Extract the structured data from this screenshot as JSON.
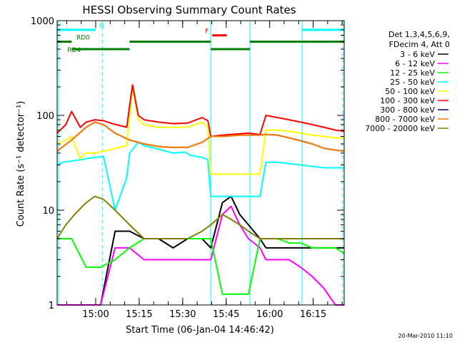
{
  "chart_data": {
    "type": "line",
    "title": "HESSI Observing Summary Count Rates",
    "xlabel": "Start Time (06-Jan-04 14:46:42)",
    "ylabel": "Count Rate (s⁻¹ detector⁻¹)",
    "x_units": "minutes since start time",
    "xlim": [
      0,
      99
    ],
    "ylim": [
      1,
      1000
    ],
    "yscale": "log",
    "grid": false,
    "legend_position": "right",
    "x_ticks": [
      {
        "label": "15:00",
        "value": 13.3
      },
      {
        "label": "15:15",
        "value": 28.3
      },
      {
        "label": "15:30",
        "value": 43.3
      },
      {
        "label": "15:45",
        "value": 58.3
      },
      {
        "label": "16:00",
        "value": 73.3
      },
      {
        "label": "16:15",
        "value": 88.3
      }
    ],
    "y_ticks": [
      {
        "label": "1",
        "value": 1
      },
      {
        "label": "10",
        "value": 10
      },
      {
        "label": "100",
        "value": 100
      },
      {
        "label": "1000",
        "value": 1000
      }
    ],
    "legend": {
      "header": [
        "Det 1,3,4,5,6,9,",
        "FDecim 4, Att 0"
      ]
    },
    "series": [
      {
        "name": "3 - 6 keV",
        "color": "#000000",
        "x": [
          0,
          5,
          10,
          15,
          20,
          25,
          30,
          35,
          40,
          45,
          50,
          53,
          57,
          60,
          63,
          66,
          70,
          72,
          76,
          80,
          84,
          88,
          92,
          96,
          99
        ],
        "y": [
          1,
          1,
          1,
          1,
          6,
          6,
          5,
          5,
          4,
          5,
          5,
          4,
          12,
          14,
          9,
          7,
          5,
          4,
          4,
          4,
          4,
          4,
          4,
          4,
          4
        ]
      },
      {
        "name": "6 - 12 keV",
        "color": "#ff00ff",
        "x": [
          0,
          5,
          10,
          15,
          20,
          25,
          30,
          35,
          40,
          45,
          50,
          53,
          57,
          60,
          63,
          66,
          70,
          72,
          76,
          80,
          84,
          88,
          92,
          96,
          99
        ],
        "y": [
          1,
          1,
          1,
          1,
          4,
          4,
          3,
          3,
          3,
          3,
          3,
          3,
          9,
          11,
          7,
          5,
          4,
          3,
          3,
          3,
          2.5,
          2,
          1.5,
          1,
          1
        ]
      },
      {
        "name": "12 - 25 keV",
        "color": "#00ff00",
        "x": [
          0,
          5,
          10,
          15,
          20,
          25,
          30,
          35,
          40,
          45,
          50,
          53,
          57,
          60,
          63,
          66,
          70,
          72,
          76,
          80,
          84,
          88,
          92,
          96,
          99
        ],
        "y": [
          5,
          5,
          2.5,
          2.5,
          3,
          4,
          5,
          5,
          5,
          5,
          5,
          5,
          1.3,
          1.3,
          1.3,
          1.3,
          5,
          5,
          5,
          4.5,
          4.5,
          4,
          4,
          4,
          3.5
        ]
      },
      {
        "name": "25 - 50 keV",
        "color": "#00ffff",
        "x": [
          0,
          2,
          5,
          8,
          10,
          13,
          16,
          20,
          24,
          25,
          28,
          30,
          35,
          40,
          44,
          46,
          50,
          52,
          53,
          57,
          60,
          63,
          66,
          70,
          72,
          76,
          80,
          84,
          88,
          92,
          96,
          99
        ],
        "y": [
          30,
          32,
          33,
          34,
          35,
          36,
          37,
          10,
          22,
          40,
          52,
          48,
          44,
          40,
          41,
          38,
          36,
          34,
          14,
          14,
          14,
          14,
          14,
          14,
          32,
          32,
          31,
          30,
          29,
          28,
          28,
          28
        ]
      },
      {
        "name": "50 - 100 keV",
        "color": "#ffff00",
        "x": [
          0,
          3,
          5,
          8,
          10,
          13,
          16,
          19,
          24,
          26,
          28,
          30,
          35,
          40,
          45,
          50,
          52,
          53,
          57,
          60,
          63,
          66,
          70,
          72,
          76,
          80,
          84,
          88,
          92,
          96,
          99
        ],
        "y": [
          50,
          55,
          60,
          35,
          40,
          40,
          42,
          44,
          48,
          200,
          90,
          80,
          75,
          75,
          75,
          85,
          75,
          24,
          24,
          24,
          24,
          24,
          24,
          70,
          70,
          68,
          65,
          62,
          60,
          58,
          58
        ]
      },
      {
        "name": "100 - 300 keV",
        "color": "#ff0000",
        "x": [
          0,
          3,
          5,
          8,
          10,
          13,
          16,
          19,
          24,
          26,
          28,
          30,
          35,
          40,
          45,
          50,
          52,
          53,
          57,
          60,
          63,
          66,
          70,
          72,
          76,
          80,
          84,
          88,
          92,
          96,
          99
        ],
        "y": [
          65,
          80,
          110,
          75,
          85,
          90,
          88,
          82,
          75,
          210,
          100,
          90,
          85,
          82,
          83,
          95,
          88,
          60,
          62,
          63,
          64,
          65,
          63,
          100,
          95,
          90,
          85,
          80,
          75,
          70,
          68
        ]
      },
      {
        "name": "300 - 800 keV",
        "color": "#000080",
        "x": [
          0,
          5,
          10,
          13,
          16,
          20,
          25,
          30,
          35,
          40,
          45,
          50,
          53,
          57,
          60,
          63,
          66,
          70,
          72,
          76,
          80,
          84,
          88,
          92,
          96,
          99
        ],
        "y": [
          42,
          55,
          75,
          85,
          80,
          65,
          55,
          50,
          47,
          46,
          46,
          52,
          60,
          60,
          61,
          62,
          62,
          62,
          63,
          62,
          58,
          54,
          50,
          45,
          43,
          42
        ]
      },
      {
        "name": "800 - 7000 keV",
        "color": "#ff8000",
        "x": [
          0,
          5,
          10,
          13,
          16,
          20,
          25,
          30,
          35,
          40,
          45,
          50,
          53,
          57,
          60,
          63,
          66,
          70,
          72,
          76,
          80,
          84,
          88,
          92,
          96,
          99
        ],
        "y": [
          42,
          55,
          75,
          85,
          80,
          65,
          55,
          50,
          47,
          46,
          46,
          52,
          60,
          60,
          61,
          62,
          62,
          62,
          63,
          62,
          58,
          54,
          50,
          45,
          43,
          42
        ]
      },
      {
        "name": "7000 - 20000 keV",
        "color": "#808000",
        "x": [
          0,
          3,
          6,
          10,
          13,
          16,
          20,
          25,
          30,
          35,
          40,
          45,
          50,
          53,
          57,
          60,
          63,
          66,
          70,
          72,
          76,
          80,
          84,
          88,
          92,
          96,
          99
        ],
        "y": [
          5,
          7,
          9,
          12,
          14,
          13,
          10,
          7,
          5,
          5,
          5,
          5,
          6,
          7,
          9,
          8,
          7,
          6,
          5,
          5,
          5,
          5,
          5,
          5,
          5,
          5,
          5
        ]
      }
    ],
    "annotations": {
      "flags": [
        {
          "label": "N",
          "color": "#00ffff",
          "y": 800,
          "segments": [
            [
              0,
              13.3
            ],
            [
              84.5,
              99
            ]
          ]
        },
        {
          "label": "F",
          "color": "#ff0000",
          "y": 700,
          "segments": [
            [
              53.5,
              58.5
            ]
          ]
        },
        {
          "label": "RD0",
          "color": "#008000",
          "y": 600,
          "segments": [
            [
              0,
              5
            ],
            [
              25,
              53
            ],
            [
              66.5,
              99
            ]
          ]
        },
        {
          "label": "RD4",
          "color": "#008000",
          "y": 500,
          "segments": [
            [
              5,
              25
            ],
            [
              53,
              66.5
            ]
          ]
        }
      ],
      "vlines": [
        {
          "x": 0.5,
          "color": "#00ffff",
          "style": "solid"
        },
        {
          "x": 15.7,
          "color": "#00ffff",
          "style": "dashed"
        },
        {
          "x": 53.0,
          "color": "#00ffff",
          "style": "solid"
        },
        {
          "x": 66.5,
          "color": "#00ffff",
          "style": "solid"
        },
        {
          "x": 84.5,
          "color": "#00ffff",
          "style": "solid"
        },
        {
          "x": 98.5,
          "color": "#00ffff",
          "style": "dashed"
        }
      ]
    }
  },
  "footer": {
    "timestamp": "20-Mar-2010 11:10"
  }
}
